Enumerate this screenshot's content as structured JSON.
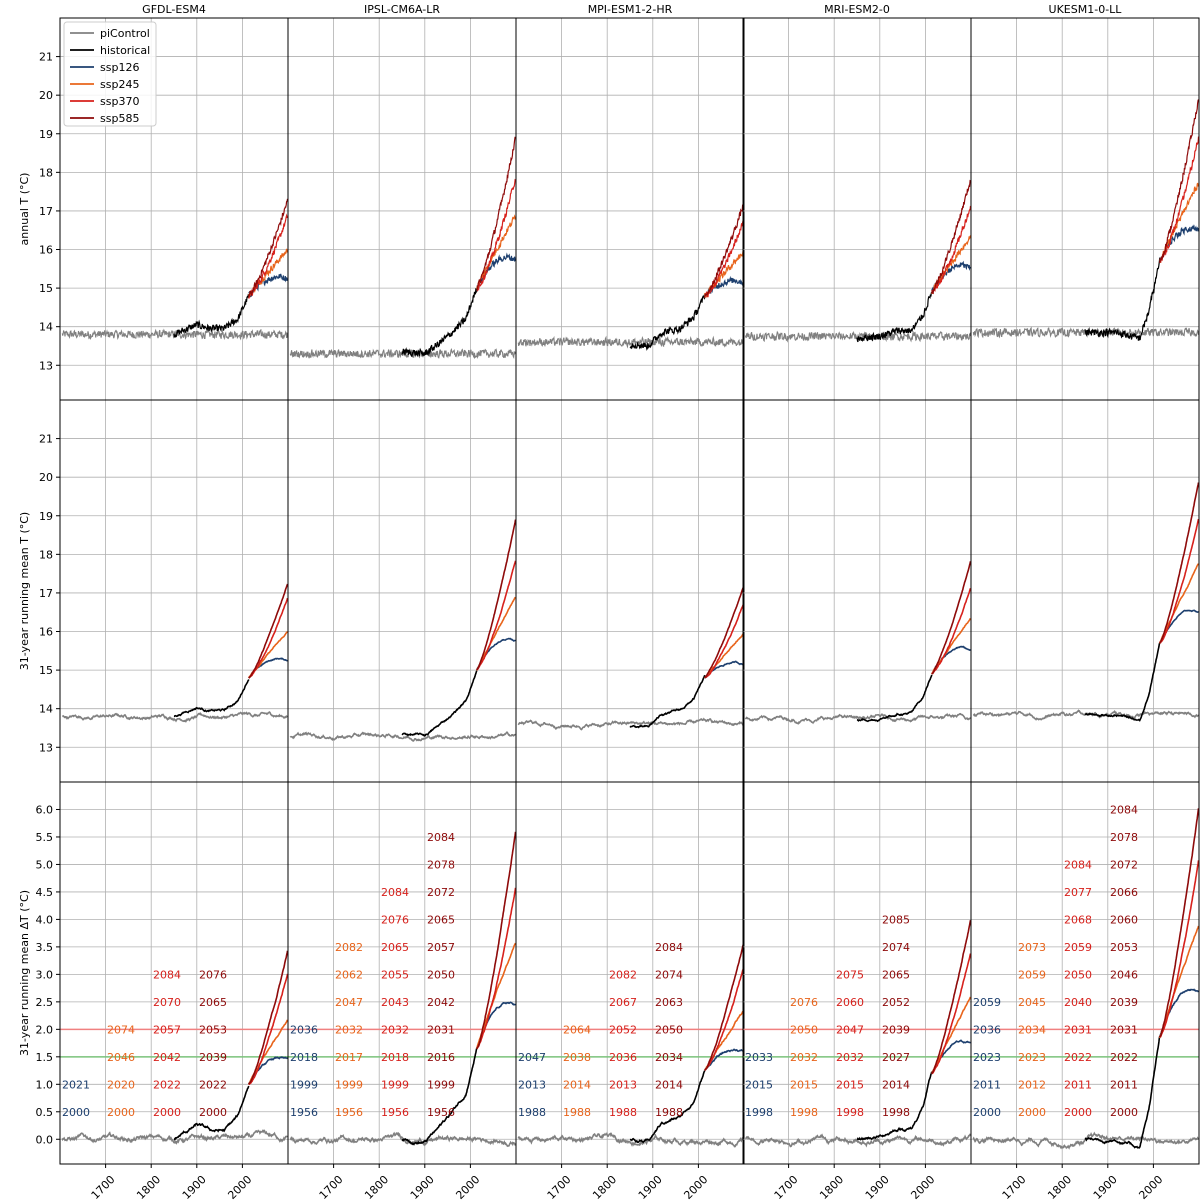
{
  "figure": {
    "models": [
      "GFDL-ESM4",
      "IPSL-CM6A-LR",
      "MPI-ESM1-2-HR",
      "MRI-ESM2-0",
      "UKESM1-0-LL"
    ],
    "row_ylabels": [
      "annual T (°C)",
      "31-year running mean T (°C)",
      "31-year running mean ΔT (°C)"
    ]
  },
  "colors": {
    "piControl": "#808080",
    "historical": "#000000",
    "ssp126": "#1d3f6e",
    "ssp245": "#e8641b",
    "ssp370": "#d7211c",
    "ssp585": "#8e0a0a",
    "threshold_2_0": "#f08080",
    "threshold_1_5": "#7cc47c",
    "grid": "#b0b0b0"
  },
  "chart_data": {
    "type": "line",
    "x_ticks": [
      1700,
      1800,
      1900,
      2000
    ],
    "xlim": [
      1600,
      2100
    ],
    "legend": {
      "placement": "top-left of first panel",
      "entries": [
        "piControl",
        "historical",
        "ssp126",
        "ssp245",
        "ssp370",
        "ssp585"
      ]
    },
    "rows": [
      {
        "ylabel": "annual T (°C)",
        "ylim": [
          12.1,
          22
        ],
        "y_ticks": [
          13,
          14,
          15,
          16,
          17,
          18,
          19,
          20,
          21
        ]
      },
      {
        "ylabel": "31-year running mean T (°C)",
        "ylim": [
          12.1,
          22
        ],
        "y_ticks": [
          13,
          14,
          15,
          16,
          17,
          18,
          19,
          20,
          21
        ]
      },
      {
        "ylabel": "31-year running mean ΔT (°C)",
        "ylim": [
          -0.45,
          6.5
        ],
        "y_ticks": [
          0.0,
          0.5,
          1.0,
          1.5,
          2.0,
          2.5,
          3.0,
          3.5,
          4.0,
          4.5,
          5.0,
          5.5,
          6.0
        ],
        "hlines": [
          1.5,
          2.0
        ]
      }
    ],
    "panels": [
      {
        "model": "GFDL-ESM4",
        "pictrl_base": 13.8,
        "hist_start": 1850,
        "hist_end": 2014,
        "hist_anchors": [
          [
            1850,
            13.8
          ],
          [
            1900,
            14.05
          ],
          [
            1930,
            13.95
          ],
          [
            1960,
            13.95
          ],
          [
            1990,
            14.2
          ],
          [
            2014,
            14.8
          ]
        ],
        "ssp_end": {
          "ssp126": 15.25,
          "ssp245": 16.0,
          "ssp370": 16.9,
          "ssp585": 17.3
        },
        "ssp_peak_126": 15.3,
        "dT_end": {
          "ssp126": 1.45,
          "ssp245": 2.2,
          "ssp370": 3.05,
          "ssp585": 3.45
        },
        "year_table": {
          "ssp126": [
            [
              1,
              "2000"
            ],
            [
              2,
              "2021"
            ]
          ],
          "ssp245": [
            [
              1,
              "2000"
            ],
            [
              2,
              "2020"
            ],
            [
              3,
              "2046"
            ],
            [
              4,
              "2074"
            ]
          ],
          "ssp370": [
            [
              1,
              "2000"
            ],
            [
              2,
              "2022"
            ],
            [
              3,
              "2042"
            ],
            [
              4,
              "2057"
            ],
            [
              5,
              "2070"
            ],
            [
              6,
              "2084"
            ]
          ],
          "ssp585": [
            [
              1,
              "2000"
            ],
            [
              2,
              "2022"
            ],
            [
              3,
              "2039"
            ],
            [
              4,
              "2053"
            ],
            [
              5,
              "2065"
            ],
            [
              6,
              "2076"
            ]
          ]
        }
      },
      {
        "model": "IPSL-CM6A-LR",
        "pictrl_base": 13.3,
        "hist_start": 1850,
        "hist_end": 2014,
        "hist_anchors": [
          [
            1850,
            13.35
          ],
          [
            1900,
            13.3
          ],
          [
            1930,
            13.55
          ],
          [
            1960,
            13.85
          ],
          [
            1990,
            14.2
          ],
          [
            2014,
            15.0
          ]
        ],
        "ssp_end": {
          "ssp126": 15.75,
          "ssp245": 16.9,
          "ssp370": 17.9,
          "ssp585": 18.95
        },
        "ssp_peak_126": 15.8,
        "dT_end": {
          "ssp126": 2.45,
          "ssp245": 3.6,
          "ssp370": 4.6,
          "ssp585": 5.65
        },
        "year_table": {
          "ssp126": [
            [
              1,
              "1956"
            ],
            [
              2,
              "1999"
            ],
            [
              3,
              "2018"
            ],
            [
              4,
              "2036"
            ]
          ],
          "ssp245": [
            [
              1,
              "1956"
            ],
            [
              2,
              "1999"
            ],
            [
              3,
              "2017"
            ],
            [
              4,
              "2032"
            ],
            [
              5,
              "2047"
            ],
            [
              6,
              "2062"
            ],
            [
              7,
              "2082"
            ]
          ],
          "ssp370": [
            [
              1,
              "1956"
            ],
            [
              2,
              "1999"
            ],
            [
              3,
              "2018"
            ],
            [
              4,
              "2032"
            ],
            [
              5,
              "2043"
            ],
            [
              6,
              "2055"
            ],
            [
              7,
              "2065"
            ],
            [
              8,
              "2076"
            ],
            [
              9,
              "2084"
            ]
          ],
          "ssp585": [
            [
              1,
              "1956"
            ],
            [
              2,
              "1999"
            ],
            [
              3,
              "2016"
            ],
            [
              4,
              "2031"
            ],
            [
              5,
              "2042"
            ],
            [
              6,
              "2050"
            ],
            [
              7,
              "2057"
            ],
            [
              8,
              "2065"
            ],
            [
              9,
              "2072"
            ],
            [
              10,
              "2078"
            ],
            [
              11,
              "2084"
            ]
          ]
        }
      },
      {
        "model": "MPI-ESM1-2-HR",
        "pictrl_base": 13.6,
        "hist_start": 1850,
        "hist_end": 2014,
        "hist_anchors": [
          [
            1850,
            13.55
          ],
          [
            1890,
            13.5
          ],
          [
            1920,
            13.85
          ],
          [
            1960,
            13.95
          ],
          [
            1990,
            14.25
          ],
          [
            2014,
            14.8
          ]
        ],
        "ssp_end": {
          "ssp126": 15.15,
          "ssp245": 15.95,
          "ssp370": 16.75,
          "ssp585": 17.2
        },
        "ssp_peak_126": 15.2,
        "dT_end": {
          "ssp126": 1.6,
          "ssp245": 2.35,
          "ssp370": 3.15,
          "ssp585": 3.6
        },
        "year_table": {
          "ssp126": [
            [
              1,
              "1988"
            ],
            [
              2,
              "2013"
            ],
            [
              3,
              "2047"
            ]
          ],
          "ssp245": [
            [
              1,
              "1988"
            ],
            [
              2,
              "2014"
            ],
            [
              3,
              "2038"
            ],
            [
              4,
              "2064"
            ]
          ],
          "ssp370": [
            [
              1,
              "1988"
            ],
            [
              2,
              "2013"
            ],
            [
              3,
              "2036"
            ],
            [
              4,
              "2052"
            ],
            [
              5,
              "2067"
            ],
            [
              6,
              "2082"
            ]
          ],
          "ssp585": [
            [
              1,
              "1988"
            ],
            [
              2,
              "2014"
            ],
            [
              3,
              "2034"
            ],
            [
              4,
              "2050"
            ],
            [
              5,
              "2063"
            ],
            [
              6,
              "2074"
            ],
            [
              7,
              "2084"
            ]
          ]
        }
      },
      {
        "model": "MRI-ESM2-0",
        "pictrl_base": 13.75,
        "hist_start": 1850,
        "hist_end": 2014,
        "hist_anchors": [
          [
            1850,
            13.7
          ],
          [
            1900,
            13.75
          ],
          [
            1940,
            13.9
          ],
          [
            1970,
            13.9
          ],
          [
            1995,
            14.3
          ],
          [
            2014,
            14.9
          ]
        ],
        "ssp_end": {
          "ssp126": 15.5,
          "ssp245": 16.35,
          "ssp370": 17.15,
          "ssp585": 17.85
        },
        "ssp_peak_126": 15.6,
        "dT_end": {
          "ssp126": 1.75,
          "ssp245": 2.6,
          "ssp370": 3.4,
          "ssp585": 4.05
        },
        "year_table": {
          "ssp126": [
            [
              1,
              "1998"
            ],
            [
              2,
              "2015"
            ],
            [
              3,
              "2033"
            ]
          ],
          "ssp245": [
            [
              1,
              "1998"
            ],
            [
              2,
              "2015"
            ],
            [
              3,
              "2032"
            ],
            [
              4,
              "2050"
            ],
            [
              5,
              "2076"
            ]
          ],
          "ssp370": [
            [
              1,
              "1998"
            ],
            [
              2,
              "2015"
            ],
            [
              3,
              "2032"
            ],
            [
              4,
              "2047"
            ],
            [
              5,
              "2060"
            ],
            [
              6,
              "2075"
            ]
          ],
          "ssp585": [
            [
              1,
              "1998"
            ],
            [
              2,
              "2014"
            ],
            [
              3,
              "2027"
            ],
            [
              4,
              "2039"
            ],
            [
              5,
              "2052"
            ],
            [
              6,
              "2065"
            ],
            [
              7,
              "2074"
            ],
            [
              8,
              "2085"
            ]
          ]
        }
      },
      {
        "model": "UKESM1-0-LL",
        "pictrl_base": 13.85,
        "hist_start": 1850,
        "hist_end": 2014,
        "hist_anchors": [
          [
            1850,
            13.85
          ],
          [
            1920,
            13.85
          ],
          [
            1950,
            13.75
          ],
          [
            1970,
            13.7
          ],
          [
            1990,
            14.4
          ],
          [
            2014,
            15.7
          ]
        ],
        "ssp_end": {
          "ssp126": 16.5,
          "ssp245": 17.75,
          "ssp370": 18.95,
          "ssp585": 19.95
        },
        "ssp_peak_126": 16.55,
        "dT_end": {
          "ssp126": 2.7,
          "ssp245": 3.9,
          "ssp370": 5.1,
          "ssp585": 6.1
        },
        "year_table": {
          "ssp126": [
            [
              1,
              "2000"
            ],
            [
              2,
              "2011"
            ],
            [
              3,
              "2023"
            ],
            [
              4,
              "2036"
            ],
            [
              5,
              "2059"
            ]
          ],
          "ssp245": [
            [
              1,
              "2000"
            ],
            [
              2,
              "2012"
            ],
            [
              3,
              "2023"
            ],
            [
              4,
              "2034"
            ],
            [
              5,
              "2045"
            ],
            [
              6,
              "2059"
            ],
            [
              7,
              "2073"
            ]
          ],
          "ssp370": [
            [
              1,
              "2000"
            ],
            [
              2,
              "2011"
            ],
            [
              3,
              "2022"
            ],
            [
              4,
              "2031"
            ],
            [
              5,
              "2040"
            ],
            [
              6,
              "2050"
            ],
            [
              7,
              "2059"
            ],
            [
              8,
              "2068"
            ],
            [
              9,
              "2077"
            ],
            [
              10,
              "2084"
            ]
          ],
          "ssp585": [
            [
              1,
              "2000"
            ],
            [
              2,
              "2011"
            ],
            [
              3,
              "2022"
            ],
            [
              4,
              "2031"
            ],
            [
              5,
              "2039"
            ],
            [
              6,
              "2046"
            ],
            [
              7,
              "2053"
            ],
            [
              8,
              "2060"
            ],
            [
              9,
              "2066"
            ],
            [
              10,
              "2072"
            ],
            [
              11,
              "2078"
            ],
            [
              12,
              "2084"
            ]
          ]
        }
      }
    ]
  }
}
